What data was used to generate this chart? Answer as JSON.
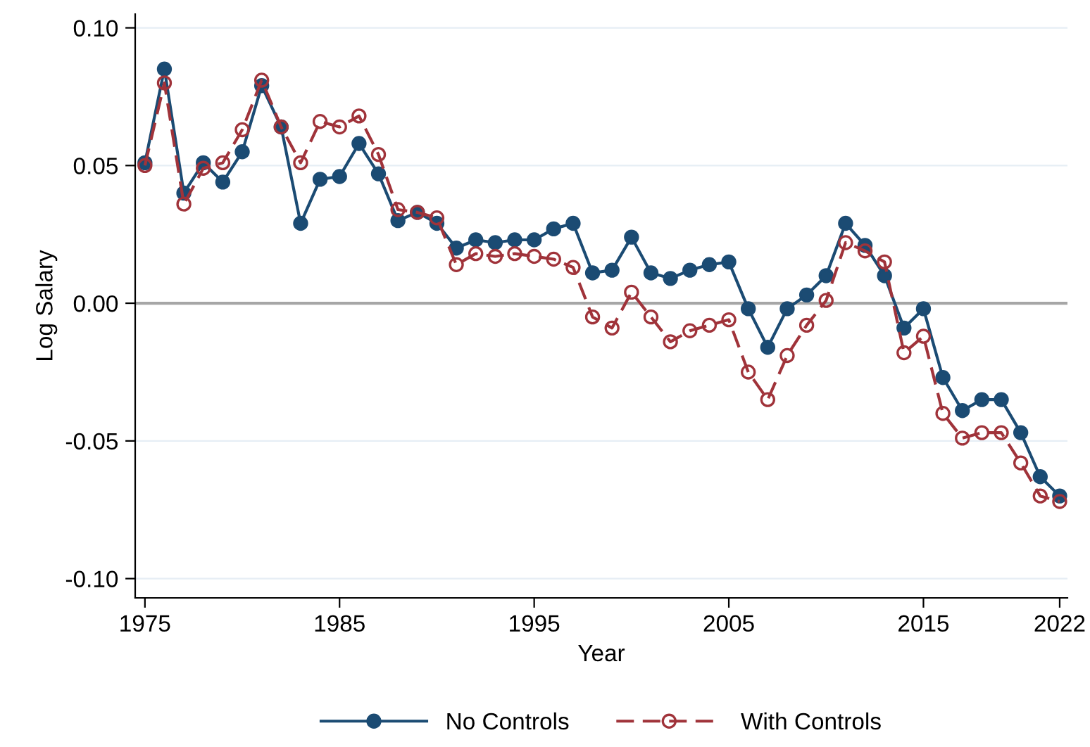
{
  "chart_data": {
    "type": "line",
    "xlabel": "Year",
    "ylabel": "Log Salary",
    "x": [
      1975,
      1976,
      1977,
      1978,
      1979,
      1980,
      1981,
      1982,
      1983,
      1984,
      1985,
      1986,
      1987,
      1988,
      1989,
      1990,
      1991,
      1992,
      1993,
      1994,
      1995,
      1996,
      1997,
      1998,
      1999,
      2000,
      2001,
      2002,
      2003,
      2004,
      2005,
      2006,
      2007,
      2008,
      2009,
      2010,
      2011,
      2012,
      2013,
      2014,
      2015,
      2016,
      2017,
      2018,
      2019,
      2020,
      2021,
      2022
    ],
    "series": [
      {
        "name": "No Controls",
        "color": "#1b4b73",
        "marker": "circle",
        "line_style": "solid",
        "values": [
          0.051,
          0.085,
          0.04,
          0.051,
          0.044,
          0.055,
          0.079,
          0.064,
          0.029,
          0.045,
          0.046,
          0.058,
          0.047,
          0.03,
          0.033,
          0.029,
          0.02,
          0.023,
          0.022,
          0.023,
          0.023,
          0.027,
          0.029,
          0.011,
          0.012,
          0.024,
          0.011,
          0.009,
          0.012,
          0.014,
          0.015,
          -0.002,
          -0.016,
          -0.002,
          0.003,
          0.01,
          0.029,
          0.021,
          0.01,
          -0.009,
          -0.002,
          -0.027,
          -0.039,
          -0.035,
          -0.035,
          -0.047,
          -0.063,
          -0.07
        ]
      },
      {
        "name": "With Controls",
        "color": "#a0333a",
        "marker": "open circle",
        "line_style": "dashed",
        "values": [
          0.05,
          0.08,
          0.036,
          0.049,
          0.051,
          0.063,
          0.081,
          0.064,
          0.051,
          0.066,
          0.064,
          0.068,
          0.054,
          0.034,
          0.033,
          0.031,
          0.014,
          0.018,
          0.017,
          0.018,
          0.017,
          0.016,
          0.013,
          -0.005,
          -0.009,
          0.004,
          -0.005,
          -0.014,
          -0.01,
          -0.008,
          -0.006,
          -0.025,
          -0.035,
          -0.019,
          -0.008,
          0.001,
          0.022,
          0.019,
          0.015,
          -0.018,
          -0.012,
          -0.04,
          -0.049,
          -0.047,
          -0.047,
          -0.058,
          -0.07,
          -0.072
        ]
      }
    ],
    "xlim": [
      1974.5,
      2022.4
    ],
    "xticks": [
      1975,
      1985,
      1995,
      2005,
      2015,
      2022
    ],
    "ylim": [
      -0.107,
      0.105
    ],
    "yticks": [
      {
        "value": 0.1,
        "label": "0.10"
      },
      {
        "value": 0.05,
        "label": "0.05"
      },
      {
        "value": 0,
        "label": "0.00"
      },
      {
        "value": -0.05,
        "label": "-0.05"
      },
      {
        "value": -0.1,
        "label": "-0.10"
      }
    ],
    "ref_lines": [
      {
        "axis": "y",
        "value": 0,
        "color": "#a6a6a6"
      }
    ],
    "grid": "y",
    "legend": "bottom"
  }
}
